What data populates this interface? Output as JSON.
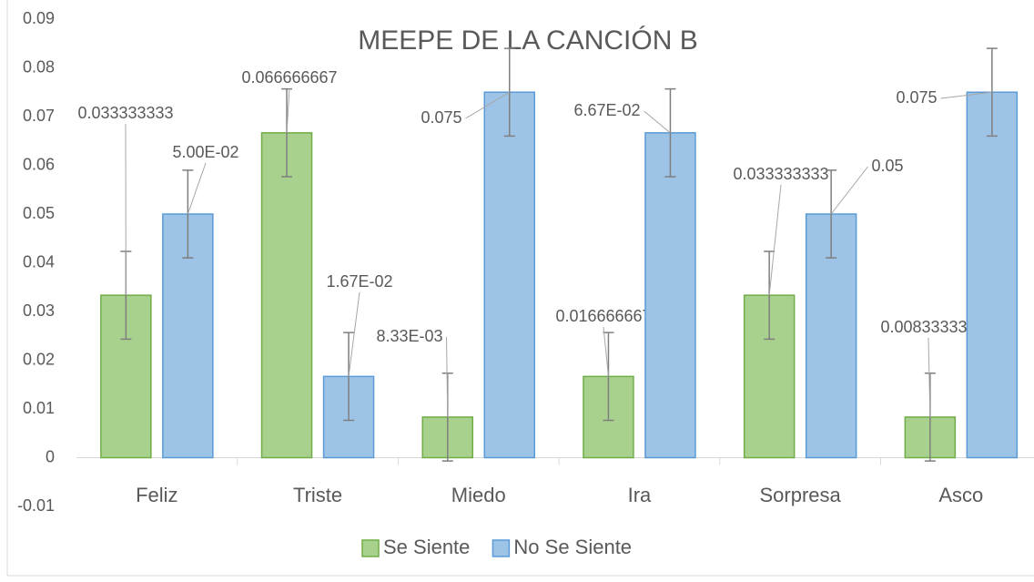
{
  "chart_data": {
    "type": "bar",
    "title": "MEEPE DE LA CANCIÓN B",
    "categories": [
      "Feliz",
      "Triste",
      "Miedo",
      "Ira",
      "Sorpresa",
      "Asco"
    ],
    "series": [
      {
        "name": "Se Siente",
        "color": "#a9d18e",
        "values": [
          0.033333333,
          0.066666667,
          0.008333333,
          0.016666667,
          0.033333333,
          0.008333333
        ],
        "value_labels": [
          "0.033333333",
          "0.066666667",
          "8.33E-03",
          "0.016666667",
          "0.033333333",
          "0.008333333"
        ],
        "errors": [
          0.009,
          0.009,
          0.009,
          0.009,
          0.009,
          0.009
        ]
      },
      {
        "name": "No Se Siente",
        "color": "#9dc3e6",
        "values": [
          0.05,
          0.016666667,
          0.075,
          0.066666667,
          0.05,
          0.075
        ],
        "value_labels": [
          "5.00E-02",
          "1.67E-02",
          "0.075",
          "6.67E-02",
          "0.05",
          "0.075"
        ],
        "errors": [
          0.009,
          0.009,
          0.009,
          0.009,
          0.009,
          0.009
        ]
      }
    ],
    "ylim": [
      -0.01,
      0.09
    ],
    "yticks": [
      -0.01,
      0,
      0.01,
      0.02,
      0.03,
      0.04,
      0.05,
      0.06,
      0.07,
      0.08,
      0.09
    ],
    "grid": false,
    "legend": "bottom"
  }
}
